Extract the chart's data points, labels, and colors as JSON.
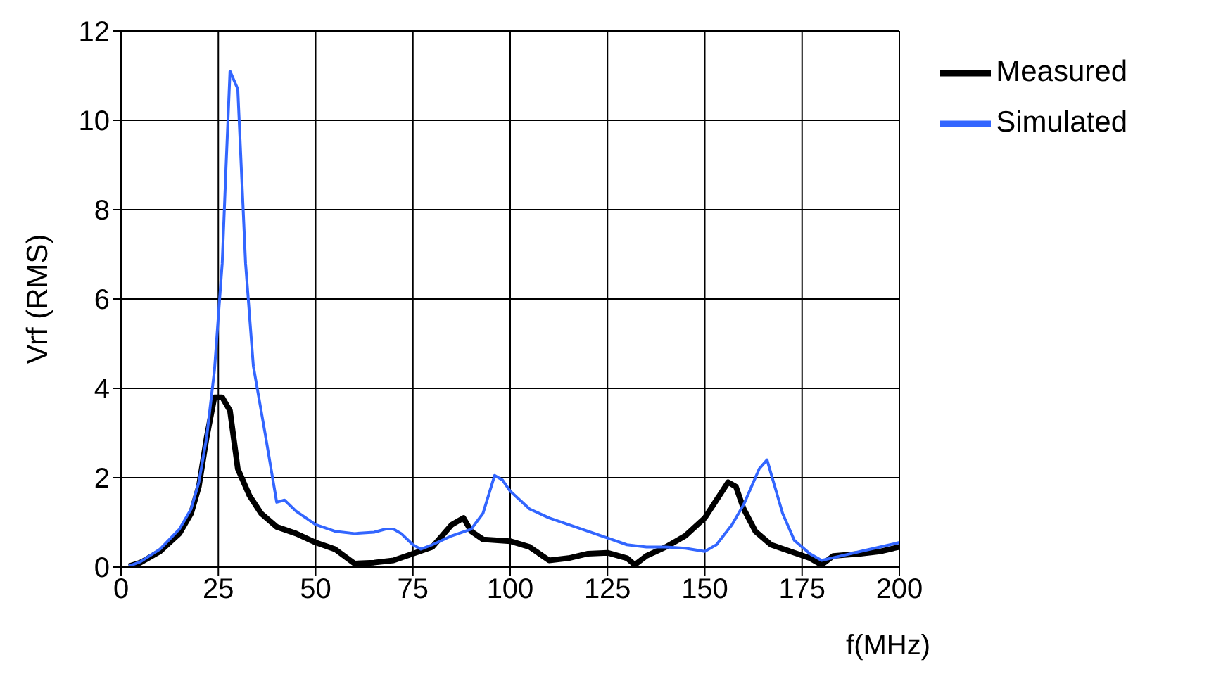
{
  "chart_data": {
    "type": "line",
    "xlabel": "f(MHz)",
    "ylabel": "Vrf (RMS)",
    "xlim": [
      0,
      200
    ],
    "xticks": [
      0,
      25,
      50,
      75,
      100,
      125,
      150,
      175,
      200
    ],
    "ylim": [
      0,
      12
    ],
    "yticks": [
      0,
      2,
      4,
      6,
      8,
      10,
      12
    ],
    "grid": true,
    "legend": "top right",
    "marker": "none",
    "line_style": "solid",
    "series": [
      {
        "name": "Measured",
        "color": "#000000",
        "x": [
          2,
          5,
          10,
          15,
          18,
          20,
          22,
          24,
          26,
          28,
          30,
          33,
          36,
          40,
          45,
          50,
          55,
          60,
          65,
          70,
          75,
          80,
          85,
          88,
          90,
          93,
          100,
          105,
          110,
          115,
          120,
          125,
          130,
          132,
          135,
          140,
          145,
          150,
          153,
          156,
          158,
          160,
          163,
          167,
          172,
          177,
          180,
          183,
          190,
          195,
          200
        ],
        "values": [
          0.02,
          0.1,
          0.35,
          0.75,
          1.2,
          1.8,
          2.9,
          3.8,
          3.8,
          3.5,
          2.2,
          1.6,
          1.2,
          0.9,
          0.75,
          0.55,
          0.4,
          0.08,
          0.1,
          0.15,
          0.3,
          0.45,
          0.95,
          1.1,
          0.8,
          0.62,
          0.58,
          0.45,
          0.15,
          0.2,
          0.3,
          0.32,
          0.2,
          0.05,
          0.25,
          0.45,
          0.7,
          1.1,
          1.5,
          1.9,
          1.8,
          1.3,
          0.8,
          0.5,
          0.35,
          0.2,
          0.05,
          0.25,
          0.3,
          0.35,
          0.45
        ]
      },
      {
        "name": "Simulated",
        "color": "#3366ff",
        "x": [
          2,
          5,
          10,
          15,
          18,
          20,
          22,
          24,
          26,
          27,
          28,
          30,
          32,
          34,
          37,
          40,
          42,
          45,
          50,
          55,
          60,
          65,
          68,
          70,
          72,
          75,
          77,
          80,
          85,
          90,
          93,
          96,
          98,
          100,
          105,
          110,
          115,
          120,
          125,
          130,
          135,
          140,
          145,
          150,
          153,
          157,
          160,
          164,
          166,
          168,
          170,
          173,
          177,
          180,
          185,
          190,
          195,
          200
        ],
        "values": [
          0.02,
          0.12,
          0.4,
          0.85,
          1.3,
          1.9,
          2.9,
          4.4,
          6.8,
          9,
          11.1,
          10.7,
          6.8,
          4.5,
          3.0,
          1.45,
          1.5,
          1.25,
          0.95,
          0.8,
          0.75,
          0.78,
          0.85,
          0.85,
          0.75,
          0.5,
          0.4,
          0.5,
          0.7,
          0.85,
          1.2,
          2.05,
          1.95,
          1.7,
          1.3,
          1.1,
          0.95,
          0.8,
          0.65,
          0.5,
          0.45,
          0.45,
          0.42,
          0.35,
          0.5,
          0.95,
          1.4,
          2.2,
          2.4,
          1.8,
          1.2,
          0.6,
          0.3,
          0.15,
          0.25,
          0.35,
          0.45,
          0.55
        ]
      }
    ]
  }
}
